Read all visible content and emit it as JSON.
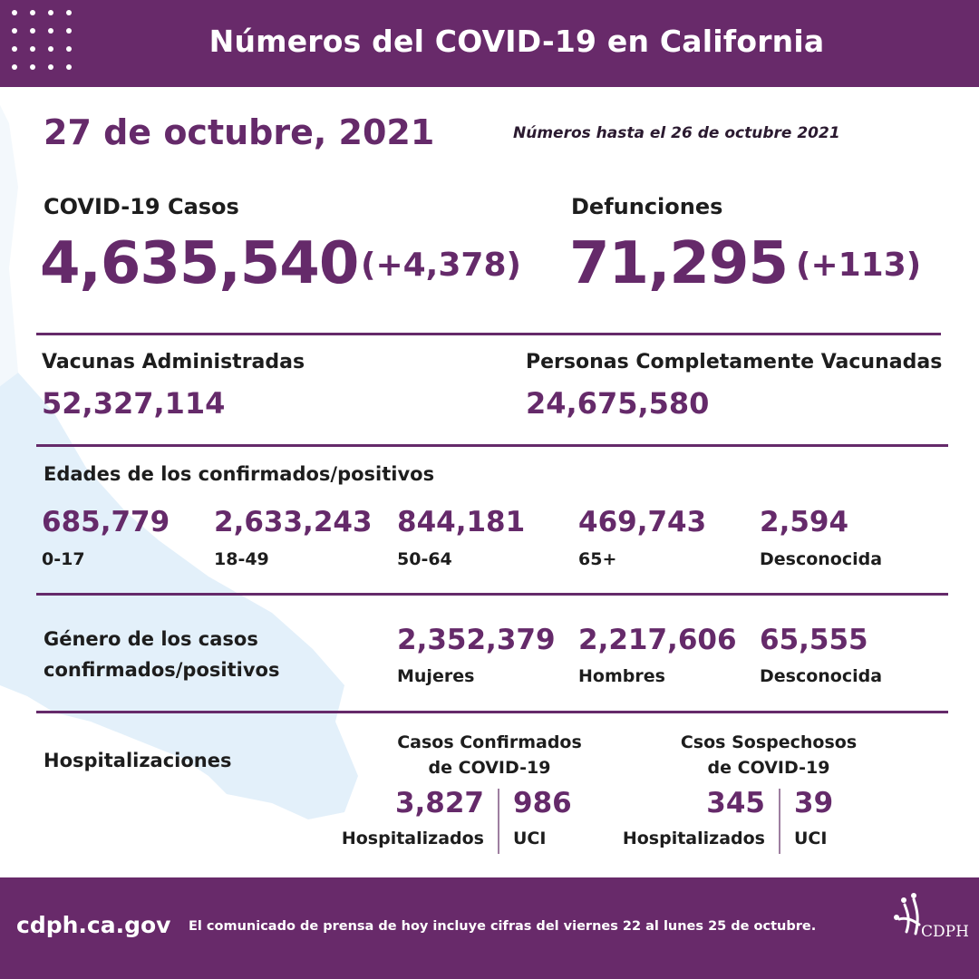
{
  "header": {
    "title": "Números del COVID-19 en California"
  },
  "date": "27 de octubre, 2021",
  "as_of": "Números hasta el 26 de octubre 2021",
  "cases": {
    "label": "COVID-19 Casos",
    "value": "4,635,540",
    "delta": "(+4,378)"
  },
  "deaths": {
    "label": "Defunciones",
    "value": "71,295",
    "delta": "(+113)"
  },
  "vaccines": {
    "label": "Vacunas Administradas",
    "value": "52,327,114"
  },
  "fully_vaccinated": {
    "label": "Personas Completamente Vacunadas",
    "value": "24,675,580"
  },
  "ages": {
    "label": "Edades de los confirmados/positivos",
    "groups": [
      {
        "value": "685,779",
        "label": "0-17"
      },
      {
        "value": "2,633,243",
        "label": "18-49"
      },
      {
        "value": "844,181",
        "label": "50-64"
      },
      {
        "value": "469,743",
        "label": "65+"
      },
      {
        "value": "2,594",
        "label": "Desconocida"
      }
    ]
  },
  "gender": {
    "label_line1": "Género de los casos",
    "label_line2": "confirmados/positivos",
    "groups": [
      {
        "value": "2,352,379",
        "label": "Mujeres"
      },
      {
        "value": "2,217,606",
        "label": "Hombres"
      },
      {
        "value": "65,555",
        "label": "Desconocida"
      }
    ]
  },
  "hospital": {
    "label": "Hospitalizaciones",
    "confirmed": {
      "title_line1": "Casos Confirmados",
      "title_line2": "de COVID-19",
      "hospitalized": "3,827",
      "hospitalized_label": "Hospitalizados",
      "icu": "986",
      "icu_label": "UCI"
    },
    "suspected": {
      "title_line1": "Csos Sospechosos",
      "title_line2": "de COVID-19",
      "hospitalized": "345",
      "hospitalized_label": "Hospitalizados",
      "icu": "39",
      "icu_label": "UCI"
    }
  },
  "footer": {
    "site": "cdph.ca.gov",
    "note": "El comunicado de prensa de hoy incluye cifras del viernes 22 al lunes 25 de octubre.",
    "logo_text": "CDPH"
  },
  "colors": {
    "brand": "#682a6a",
    "map": "#e4f1fb",
    "text": "#1d1d1d"
  }
}
